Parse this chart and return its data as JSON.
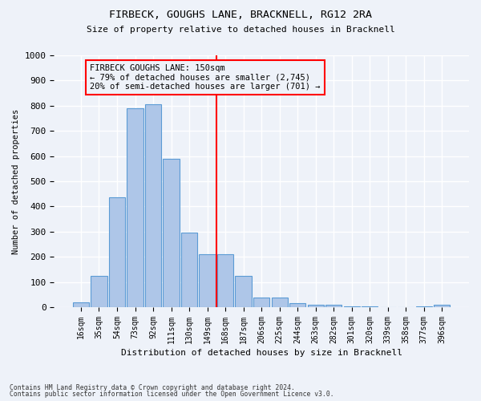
{
  "title": "FIRBECK, GOUGHS LANE, BRACKNELL, RG12 2RA",
  "subtitle": "Size of property relative to detached houses in Bracknell",
  "xlabel": "Distribution of detached houses by size in Bracknell",
  "ylabel": "Number of detached properties",
  "bar_labels": [
    "16sqm",
    "35sqm",
    "54sqm",
    "73sqm",
    "92sqm",
    "111sqm",
    "130sqm",
    "149sqm",
    "168sqm",
    "187sqm",
    "206sqm",
    "225sqm",
    "244sqm",
    "263sqm",
    "282sqm",
    "301sqm",
    "320sqm",
    "339sqm",
    "358sqm",
    "377sqm",
    "396sqm"
  ],
  "bar_values": [
    20,
    125,
    435,
    790,
    805,
    590,
    295,
    210,
    210,
    125,
    40,
    40,
    15,
    10,
    10,
    5,
    5,
    0,
    0,
    5,
    10
  ],
  "bar_color": "#aec6e8",
  "bar_edgecolor": "#5b9bd5",
  "vline_color": "red",
  "annotation_text": "FIRBECK GOUGHS LANE: 150sqm\n← 79% of detached houses are smaller (2,745)\n20% of semi-detached houses are larger (701) →",
  "annotation_box_color": "red",
  "ylim": [
    0,
    1000
  ],
  "yticks": [
    0,
    100,
    200,
    300,
    400,
    500,
    600,
    700,
    800,
    900,
    1000
  ],
  "footer1": "Contains HM Land Registry data © Crown copyright and database right 2024.",
  "footer2": "Contains public sector information licensed under the Open Government Licence v3.0.",
  "bg_color": "#eef2f9",
  "grid_color": "#ffffff"
}
